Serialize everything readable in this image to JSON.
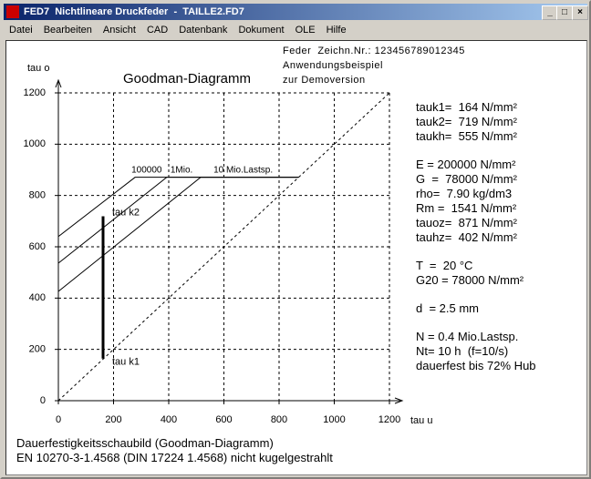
{
  "window": {
    "title": "FED7  Nichtlineare Druckfeder  -  TAILLE2.FD7",
    "menu": [
      "Datei",
      "Bearbeiten",
      "Ansicht",
      "CAD",
      "Datenbank",
      "Dokument",
      "OLE",
      "Hilfe"
    ]
  },
  "header": {
    "lines": [
      "Feder  Zeichn.Nr.: 123456789012345",
      "Anwendungsbeispiel",
      "zur Demoversion"
    ]
  },
  "chart_data": {
    "type": "line",
    "title": "Goodman-Diagramm",
    "x_label": "tau u",
    "y_label": "tau o",
    "xlim": [
      0,
      1200
    ],
    "ylim": [
      0,
      1200
    ],
    "xticks": [
      0,
      200,
      400,
      600,
      800,
      1000,
      1200
    ],
    "yticks": [
      0,
      200,
      400,
      600,
      800,
      1000,
      1200
    ],
    "grid": true,
    "series": [
      {
        "name": "100000",
        "color": "#000000",
        "x": [
          0,
          278,
          871
        ],
        "values": [
          640,
          871,
          871
        ]
      },
      {
        "name": "1Mio.",
        "color": "#000000",
        "x": [
          0,
          393,
          871
        ],
        "values": [
          536,
          871,
          871
        ]
      },
      {
        "name": "10 Mio.Lastsp.",
        "color": "#000000",
        "x": [
          0,
          516,
          871
        ],
        "values": [
          426,
          871,
          871
        ]
      }
    ],
    "diagonal": {
      "x": [
        0,
        1200
      ],
      "values": [
        0,
        1200
      ]
    },
    "stroke": {
      "x": [
        162,
        162
      ],
      "values": [
        164,
        719
      ],
      "labels": [
        "tau k1",
        "tau k2"
      ]
    }
  },
  "panel": {
    "groups": [
      [
        "tauk1=  164 N/mm²",
        "tauk2=  719 N/mm²",
        "taukh=  555 N/mm²"
      ],
      [
        "E = 200000 N/mm²",
        "G  =  78000 N/mm²",
        "rho=  7.90 kg/dm3",
        "Rm =  1541 N/mm²",
        "tauoz=  871 N/mm²",
        "tauhz=  402 N/mm²"
      ],
      [
        "T  =  20 °C",
        "G20 = 78000 N/mm²"
      ],
      [
        "d  = 2.5 mm"
      ],
      [
        "N = 0.4 Mio.Lastsp.",
        "Nt= 10 h  (f=10/s)",
        "dauerfest bis 72% Hub"
      ]
    ]
  },
  "footer": {
    "lines": [
      "Dauerfestigkeitsschaubild (Goodman-Diagramm)",
      "EN 10270-3-1.4568 (DIN 17224 1.4568) nicht kugelgestrahlt"
    ]
  }
}
